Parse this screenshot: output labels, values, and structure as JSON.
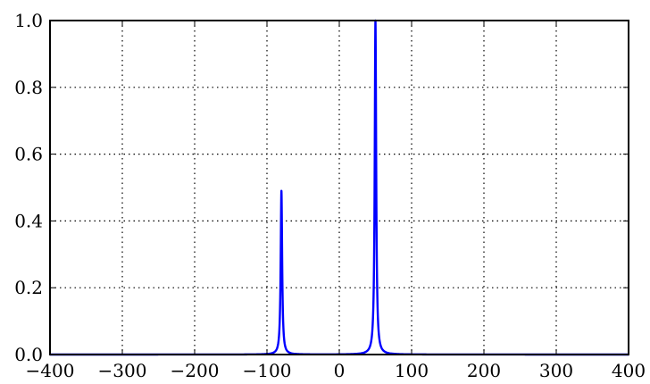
{
  "chart_data": {
    "type": "line",
    "title": "",
    "xlabel": "",
    "ylabel": "",
    "xlim": [
      -400,
      400
    ],
    "ylim": [
      0.0,
      1.0
    ],
    "xticks": [
      -400,
      -300,
      -200,
      -100,
      0,
      100,
      200,
      300,
      400
    ],
    "xtick_labels": [
      "−400",
      "−300",
      "−200",
      "−100",
      "0",
      "100",
      "200",
      "300",
      "400"
    ],
    "yticks": [
      0.0,
      0.2,
      0.4,
      0.6,
      0.8,
      1.0
    ],
    "ytick_labels": [
      "0.0",
      "0.2",
      "0.4",
      "0.6",
      "0.8",
      "1.0"
    ],
    "grid": true,
    "legend": "none",
    "series": [
      {
        "color": "#0000ff",
        "peaks": [
          {
            "x": -80,
            "height": 0.49
          },
          {
            "x": 50,
            "height": 1.0
          }
        ],
        "half_width": 1.2
      }
    ]
  }
}
